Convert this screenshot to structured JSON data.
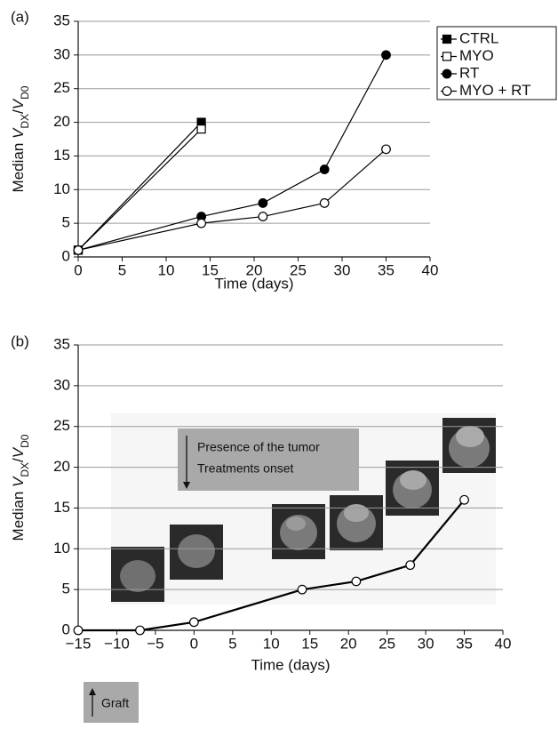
{
  "chart_data": [
    {
      "type": "line",
      "panel_label": "(a)",
      "xlabel": "Time (days)",
      "ylabel": [
        {
          "text": "Median "
        },
        {
          "text": "V",
          "italic": true
        },
        {
          "text": "DX",
          "sub": true
        },
        {
          "text": "/"
        },
        {
          "text": "V",
          "italic": true
        },
        {
          "text": "D0",
          "sub": true
        }
      ],
      "xlim": [
        0,
        40
      ],
      "ylim": [
        0,
        35
      ],
      "xticks": [
        0,
        5,
        10,
        15,
        20,
        25,
        30,
        35,
        40
      ],
      "yticks": [
        0,
        5,
        10,
        15,
        20,
        25,
        30,
        35
      ],
      "grid": true,
      "legend": "upper right",
      "series": [
        {
          "name": "CTRL",
          "color": "#000000",
          "marker": "square",
          "filled": true,
          "x": [
            0,
            14
          ],
          "values": [
            1,
            20
          ]
        },
        {
          "name": "MYO",
          "color": "#000000",
          "marker": "square",
          "filled": false,
          "x": [
            0,
            14
          ],
          "values": [
            1,
            19
          ]
        },
        {
          "name": "RT",
          "color": "#000000",
          "marker": "circle",
          "filled": true,
          "x": [
            0,
            14,
            21,
            28,
            35
          ],
          "values": [
            1,
            6,
            8,
            13,
            30
          ]
        },
        {
          "name": "MYO + RT",
          "color": "#000000",
          "marker": "circle",
          "filled": false,
          "x": [
            0,
            14,
            21,
            28,
            35
          ],
          "values": [
            1,
            5,
            6,
            8,
            16
          ]
        }
      ]
    },
    {
      "type": "line",
      "panel_label": "(b)",
      "xlabel": "Time (days)",
      "ylabel": [
        {
          "text": "Median "
        },
        {
          "text": "V",
          "italic": true
        },
        {
          "text": "DX",
          "sub": true
        },
        {
          "text": "/"
        },
        {
          "text": "V",
          "italic": true
        },
        {
          "text": "D0",
          "sub": true
        }
      ],
      "xlim": [
        -15,
        40
      ],
      "ylim": [
        0,
        35
      ],
      "xticks": [
        {
          "value": -15,
          "label": "−15"
        },
        {
          "value": -10,
          "label": "−10"
        },
        {
          "value": -5,
          "label": "−5"
        },
        0,
        5,
        10,
        15,
        20,
        25,
        30,
        35,
        40
      ],
      "yticks": [
        0,
        5,
        10,
        15,
        20,
        25,
        30,
        35
      ],
      "grid": true,
      "series": [
        {
          "color": "#000000",
          "marker": "circle",
          "filled": false,
          "x": [
            -15,
            -7,
            0,
            14,
            21,
            28,
            35
          ],
          "values": [
            0,
            0,
            1,
            5,
            6,
            8,
            16
          ]
        }
      ],
      "annotations": [
        {
          "lines": [
            "Presence of the tumor",
            "Treatments onset"
          ]
        },
        {
          "lines": [
            "Graft"
          ]
        }
      ]
    }
  ]
}
